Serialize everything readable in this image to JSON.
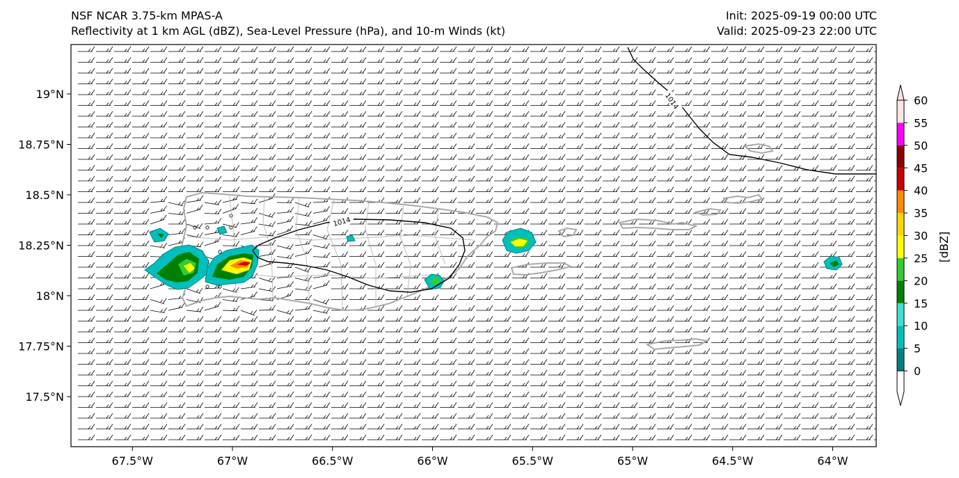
{
  "title": {
    "left_line1": "NSF NCAR 3.75-km MPAS-A",
    "left_line2": "Reflectivity at 1 km AGL (dBZ), Sea-Level Pressure (hPa), and 10-m Winds (kt)",
    "right_line1": "Init: 2025-09-19 00:00 UTC",
    "right_line2": "Valid: 2025-09-23 22:00 UTC"
  },
  "map": {
    "lon_ticks": [
      {
        "value": -67.5,
        "label": "67.5°W"
      },
      {
        "value": -67.0,
        "label": "67°W"
      },
      {
        "value": -66.5,
        "label": "66.5°W"
      },
      {
        "value": -66.0,
        "label": "66°W"
      },
      {
        "value": -65.5,
        "label": "65.5°W"
      },
      {
        "value": -65.0,
        "label": "65°W"
      },
      {
        "value": -64.5,
        "label": "64.5°W"
      },
      {
        "value": -64.0,
        "label": "64°W"
      }
    ],
    "lat_ticks": [
      {
        "value": 19.0,
        "label": "19°N"
      },
      {
        "value": 18.75,
        "label": "18.75°N"
      },
      {
        "value": 18.5,
        "label": "18.5°N"
      },
      {
        "value": 18.25,
        "label": "18.25°N"
      },
      {
        "value": 18.0,
        "label": "18°N"
      },
      {
        "value": 17.75,
        "label": "17.75°N"
      },
      {
        "value": 17.5,
        "label": "17.5°N"
      }
    ],
    "isobar_label": "1014",
    "wind": {
      "direction_from": "east",
      "description": "easterly trade winds"
    }
  },
  "colorbar": {
    "label": "[dBZ]",
    "levels": [
      0,
      5,
      10,
      15,
      20,
      25,
      30,
      35,
      40,
      45,
      50,
      55,
      60
    ],
    "colors": [
      "#008080",
      "#00bfbf",
      "#40e0d0",
      "#008000",
      "#32cd32",
      "#ffff00",
      "#ffd700",
      "#ff8c00",
      "#cc0000",
      "#8b0000",
      "#ff00ff",
      "#ffe4e1"
    ]
  },
  "colors": {
    "coast": "#a9a9a9",
    "isobar": "#000000",
    "frame": "#000000"
  }
}
